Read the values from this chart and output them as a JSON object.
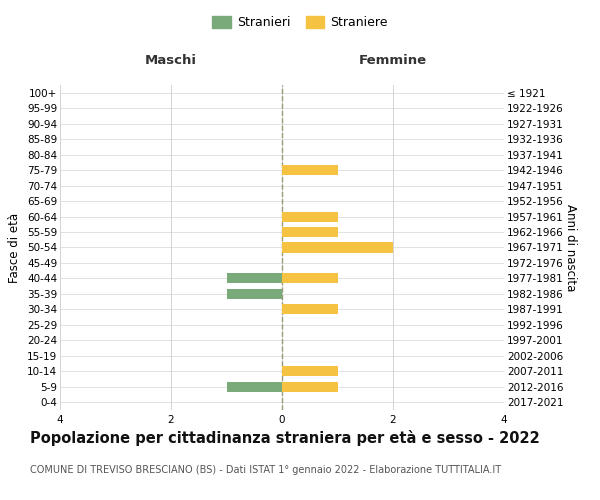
{
  "age_groups": [
    "100+",
    "95-99",
    "90-94",
    "85-89",
    "80-84",
    "75-79",
    "70-74",
    "65-69",
    "60-64",
    "55-59",
    "50-54",
    "45-49",
    "40-44",
    "35-39",
    "30-34",
    "25-29",
    "20-24",
    "15-19",
    "10-14",
    "5-9",
    "0-4"
  ],
  "birth_years": [
    "≤ 1921",
    "1922-1926",
    "1927-1931",
    "1932-1936",
    "1937-1941",
    "1942-1946",
    "1947-1951",
    "1952-1956",
    "1957-1961",
    "1962-1966",
    "1967-1971",
    "1972-1976",
    "1977-1981",
    "1982-1986",
    "1987-1991",
    "1992-1996",
    "1997-2001",
    "2002-2006",
    "2007-2011",
    "2012-2016",
    "2017-2021"
  ],
  "maschi": [
    0,
    0,
    0,
    0,
    0,
    0,
    0,
    0,
    0,
    0,
    0,
    0,
    -1,
    -1,
    0,
    0,
    0,
    0,
    0,
    -1,
    0
  ],
  "femmine": [
    0,
    0,
    0,
    0,
    0,
    1,
    0,
    0,
    1,
    1,
    2,
    0,
    1,
    0,
    1,
    0,
    0,
    0,
    1,
    1,
    0
  ],
  "color_maschi": "#7aaa7a",
  "color_femmine": "#f5c242",
  "title": "Popolazione per cittadinanza straniera per età e sesso - 2022",
  "subtitle": "COMUNE DI TREVISO BRESCIANO (BS) - Dati ISTAT 1° gennaio 2022 - Elaborazione TUTTITALIA.IT",
  "ylabel_left": "Fasce di età",
  "ylabel_right": "Anni di nascita",
  "xlabel_maschi": "Maschi",
  "xlabel_femmine": "Femmine",
  "legend_maschi": "Stranieri",
  "legend_femmine": "Straniere",
  "xlim": [
    -4,
    4
  ],
  "xticks": [
    -4,
    -2,
    0,
    2,
    4
  ],
  "xticklabels": [
    "4",
    "2",
    "0",
    "2",
    "4"
  ],
  "background_color": "#ffffff",
  "grid_color": "#cccccc",
  "center_line_color": "#999977",
  "title_fontsize": 10.5,
  "subtitle_fontsize": 7.0,
  "axis_fontsize": 8.5,
  "tick_fontsize": 7.5
}
